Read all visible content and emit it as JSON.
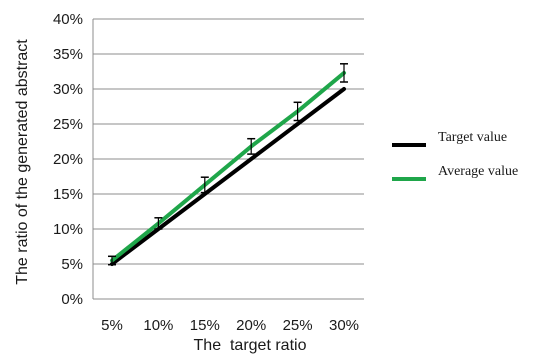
{
  "chart_data": {
    "type": "line",
    "categories": [
      "5%",
      "10%",
      "15%",
      "20%",
      "25%",
      "30%"
    ],
    "xlabel": "The  target ratio",
    "ylabel": "The ratio of the generated abstract",
    "yticks": [
      "0%",
      "5%",
      "10%",
      "15%",
      "20%",
      "25%",
      "30%",
      "35%",
      "40%"
    ],
    "ylim": [
      0,
      40
    ],
    "grid": "horizontal",
    "legend_position": "right",
    "series": [
      {
        "name": "Target value",
        "color": "#000000",
        "values": [
          5,
          10,
          15,
          20,
          25,
          30
        ],
        "error": null
      },
      {
        "name": "Average value",
        "color": "#1fa64a",
        "values": [
          5.5,
          10.8,
          16.3,
          21.8,
          26.8,
          32.3
        ],
        "error": [
          0.6,
          0.8,
          1.1,
          1.1,
          1.3,
          1.3
        ]
      }
    ]
  }
}
